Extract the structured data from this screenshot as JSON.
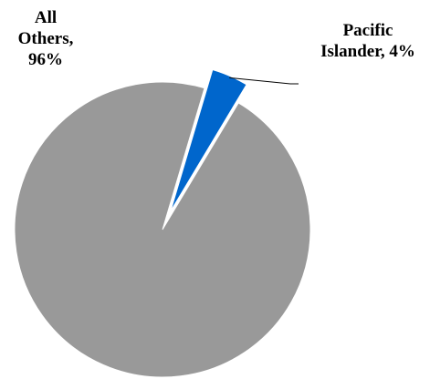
{
  "chart_data": {
    "type": "pie",
    "slices": [
      {
        "name": "Pacific Islander",
        "value": 4,
        "label_lines": [
          "Pacific",
          "Islander, 4%"
        ],
        "color": "#0066CC",
        "exploded": true
      },
      {
        "name": "All Others",
        "value": 96,
        "label_lines": [
          "All",
          "Others,",
          "96%"
        ],
        "color": "#999999",
        "exploded": false
      }
    ],
    "title": "",
    "legend": "none"
  }
}
